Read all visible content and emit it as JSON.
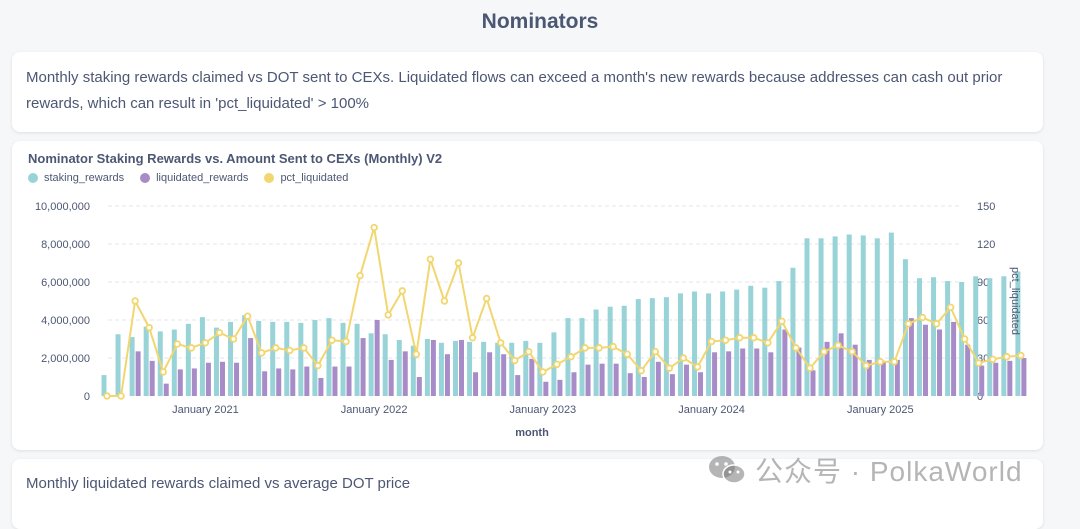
{
  "page": {
    "title": "Nominators"
  },
  "description": "Monthly staking rewards claimed vs DOT sent to CEXs. Liquidated flows can exceed a month's new rewards because addresses can cash out prior rewards, which can result in 'pct_liquidated' > 100%",
  "next_card": {
    "text": "Monthly liquidated rewards claimed vs average DOT price"
  },
  "watermark": {
    "text": "公众号 · PolkaWorld"
  },
  "colors": {
    "staking_rewards": "#98d3d7",
    "liquidated_rewards": "#a78cc8",
    "pct_liquidated": "#f2d670"
  },
  "chart_data": {
    "type": "bar",
    "title": "Nominator Staking Rewards vs. Amount Sent to CEXs (Monthly) V2",
    "xlabel": "month",
    "ylabel_right": "pct_liquidated",
    "ylim": [
      0,
      10000000
    ],
    "ylim_right": [
      0,
      150
    ],
    "y_ticks": [
      "10,000,000",
      "8,000,000",
      "6,000,000",
      "4,000,000",
      "2,000,000",
      "0"
    ],
    "y_right_ticks": [
      "150",
      "120",
      "90",
      "60",
      "30",
      "0"
    ],
    "x_tick_labels": [
      "January 2021",
      "January 2022",
      "January 2023",
      "January 2024",
      "January 2025"
    ],
    "legend": [
      "staking_rewards",
      "liquidated_rewards",
      "pct_liquidated"
    ],
    "series": [
      {
        "name": "staking_rewards",
        "values": [
          1100000,
          3250000,
          3100000,
          3650000,
          3400000,
          3500000,
          3800000,
          4150000,
          3600000,
          3900000,
          4250000,
          3950000,
          3900000,
          3900000,
          3850000,
          4000000,
          4100000,
          3850000,
          3800000,
          3300000,
          3250000,
          2950000,
          2650000,
          3000000,
          2800000,
          2900000,
          2850000,
          2850000,
          2800000,
          2800000,
          2900000,
          2800000,
          3350000,
          4100000,
          4100000,
          4550000,
          4700000,
          4750000,
          5100000,
          5150000,
          5200000,
          5400000,
          5500000,
          5400000,
          5500000,
          5600000,
          5800000,
          5700000,
          6050000,
          6750000,
          8300000,
          8300000,
          8400000,
          8500000,
          8450000,
          8300000,
          8600000,
          7200000,
          6200000,
          6250000,
          6050000,
          6000000,
          6300000,
          6200000,
          6300000,
          6550000
        ]
      },
      {
        "name": "liquidated_rewards",
        "values": [
          0,
          0,
          2350000,
          1850000,
          650000,
          1400000,
          1450000,
          1750000,
          1800000,
          1750000,
          3050000,
          1300000,
          1450000,
          1400000,
          1550000,
          950000,
          1550000,
          1550000,
          3050000,
          4000000,
          1900000,
          2350000,
          1000000,
          2950000,
          2200000,
          2950000,
          1250000,
          2300000,
          2200000,
          1100000,
          1950000,
          750000,
          850000,
          1250000,
          1650000,
          1700000,
          1700000,
          1200000,
          1000000,
          1800000,
          1150000,
          1650000,
          1250000,
          2300000,
          2350000,
          2500000,
          2500000,
          2300000,
          3500000,
          2550000,
          1350000,
          2850000,
          3300000,
          2700000,
          1900000,
          1800000,
          1900000,
          4100000,
          3750000,
          3500000,
          3900000,
          2700000,
          1600000,
          1750000,
          1850000,
          2000000
        ]
      },
      {
        "name": "pct_liquidated",
        "axis": "right",
        "values": [
          0,
          0,
          75,
          54,
          19,
          41,
          38,
          42,
          50,
          45,
          63,
          34,
          38,
          36,
          38,
          24,
          44,
          43,
          95,
          133,
          64,
          83,
          33,
          108,
          75,
          105,
          46,
          77,
          42,
          28,
          35,
          19,
          25,
          31,
          38,
          38,
          39,
          33,
          20,
          35,
          22,
          30,
          23,
          43,
          44,
          46,
          46,
          42,
          59,
          38,
          22,
          35,
          40,
          35,
          24,
          27,
          27,
          57,
          62,
          57,
          70,
          45,
          26,
          29,
          31,
          32
        ]
      }
    ]
  }
}
